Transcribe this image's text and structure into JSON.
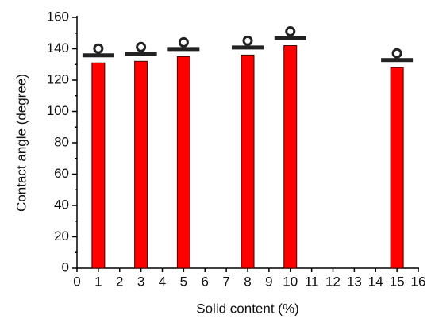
{
  "chart_data": {
    "type": "bar",
    "x_label": "Solid content (%)",
    "y_label": "Contact angle (degree)",
    "x": [
      1,
      3,
      5,
      8,
      10,
      15
    ],
    "values": [
      131,
      132,
      135,
      136,
      142,
      128
    ],
    "color": "#ff0000",
    "xlim": [
      0,
      16
    ],
    "xticks": [
      0,
      1,
      2,
      3,
      4,
      5,
      6,
      7,
      8,
      9,
      10,
      11,
      12,
      13,
      14,
      15,
      16
    ],
    "ylim": [
      0,
      160
    ],
    "yticks": [
      0,
      20,
      40,
      60,
      80,
      100,
      120,
      140,
      160
    ]
  }
}
